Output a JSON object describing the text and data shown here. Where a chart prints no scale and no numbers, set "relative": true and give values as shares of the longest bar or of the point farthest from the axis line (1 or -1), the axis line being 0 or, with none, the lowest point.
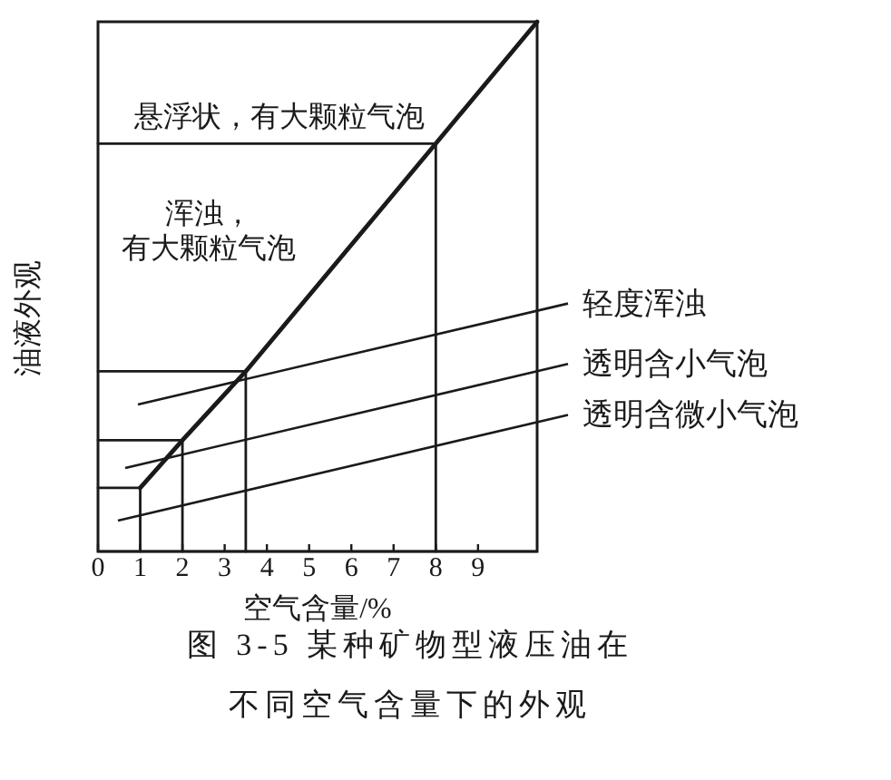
{
  "chart_data": {
    "type": "line",
    "title": "图 3-5 某种矿物型液压油在不同空气含量下的外观",
    "xlabel": "空气含量/%",
    "ylabel": "油液外观",
    "relative": true,
    "xlim": [
      0,
      10.4
    ],
    "xticks": [
      0,
      1,
      2,
      3,
      4,
      5,
      6,
      7,
      8,
      9
    ],
    "series": [
      {
        "color": "#1a1a1a",
        "x": [
          1,
          2,
          3.5,
          8,
          10.4
        ],
        "values": [
          0.12,
          0.21,
          0.34,
          0.77,
          1
        ]
      },
      {
        "color": "#1a1a1a",
        "x": [
          0,
          1,
          1
        ],
        "values": [
          0.12,
          0.12,
          0
        ]
      },
      {
        "color": "#1a1a1a",
        "x": [
          0,
          2,
          2
        ],
        "values": [
          0.21,
          0.21,
          0
        ]
      },
      {
        "color": "#1a1a1a",
        "x": [
          0,
          3.5,
          3.5
        ],
        "values": [
          0.34,
          0.34,
          0
        ]
      },
      {
        "color": "#1a1a1a",
        "x": [
          0,
          8,
          8
        ],
        "values": [
          0.77,
          0.77,
          0
        ]
      }
    ],
    "annotations": [
      "悬浮状，有大颗粒气泡",
      "浑浊，有大颗粒气泡",
      "轻度浑浊",
      "透明含小气泡",
      "透明含微小气泡"
    ]
  }
}
